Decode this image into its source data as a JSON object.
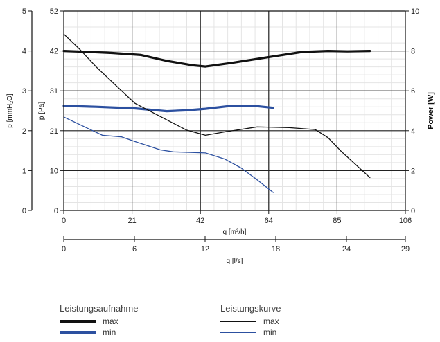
{
  "chart_data": {
    "type": "line",
    "axes": {
      "left_mmh2o": {
        "label": "p [mmH2O]",
        "ticks": [
          0,
          1,
          2,
          3,
          4,
          5
        ],
        "range": [
          0,
          5
        ]
      },
      "left_pa": {
        "label": "p [Pa]",
        "ticks": [
          0,
          10,
          21,
          31,
          42,
          52
        ],
        "range": [
          0,
          52
        ]
      },
      "right_power": {
        "label": "Power [W]",
        "ticks": [
          0,
          2,
          4,
          6,
          8,
          10
        ],
        "range": [
          0,
          10
        ]
      },
      "bottom_m3h": {
        "label": "q [m³/h]",
        "ticks": [
          0,
          21,
          42,
          64,
          85,
          106
        ],
        "range": [
          0,
          106
        ]
      },
      "bottom_ls": {
        "label": "q [l/s]",
        "ticks": [
          0,
          6,
          12,
          18,
          24,
          29
        ],
        "range": [
          0,
          29
        ]
      }
    },
    "grid": true,
    "series": [
      {
        "group": "power",
        "name": "max",
        "color": "#111111",
        "width": 3.2,
        "x": [
          0,
          8,
          15,
          24,
          32,
          40,
          44,
          52,
          64,
          74,
          82,
          88,
          95
        ],
        "y": [
          8.0,
          7.95,
          7.9,
          7.8,
          7.5,
          7.28,
          7.22,
          7.4,
          7.7,
          7.95,
          8.0,
          7.98,
          8.0
        ]
      },
      {
        "group": "power",
        "name": "min",
        "color": "#2c50a0",
        "width": 3.2,
        "x": [
          0,
          10,
          22,
          32,
          38,
          44,
          52,
          59,
          65
        ],
        "y": [
          5.25,
          5.2,
          5.12,
          4.98,
          5.02,
          5.1,
          5.25,
          5.25,
          5.15
        ]
      },
      {
        "group": "performance",
        "name": "max",
        "color": "#111111",
        "width": 1.3,
        "x": [
          0,
          5,
          10,
          22,
          30,
          38,
          44,
          50,
          60,
          70,
          78,
          82,
          86,
          95
        ],
        "y": [
          46.0,
          42.0,
          37.5,
          28.0,
          24.5,
          21.0,
          19.6,
          20.5,
          21.8,
          21.6,
          21.1,
          19.0,
          15.5,
          8.6
        ]
      },
      {
        "group": "performance",
        "name": "min",
        "color": "#2c50a0",
        "width": 1.3,
        "x": [
          0,
          6,
          12,
          18,
          22,
          30,
          34,
          44,
          50,
          55,
          60,
          65
        ],
        "y": [
          24.4,
          22.0,
          19.6,
          19.2,
          18.0,
          15.8,
          15.3,
          15.0,
          13.4,
          11.1,
          8.0,
          4.7
        ]
      }
    ]
  },
  "legend": {
    "power_title": "Leistungsaufnahme",
    "power_max": "max",
    "power_min": "min",
    "curve_title": "Leistungskurve",
    "curve_max": "max",
    "curve_min": "min"
  }
}
